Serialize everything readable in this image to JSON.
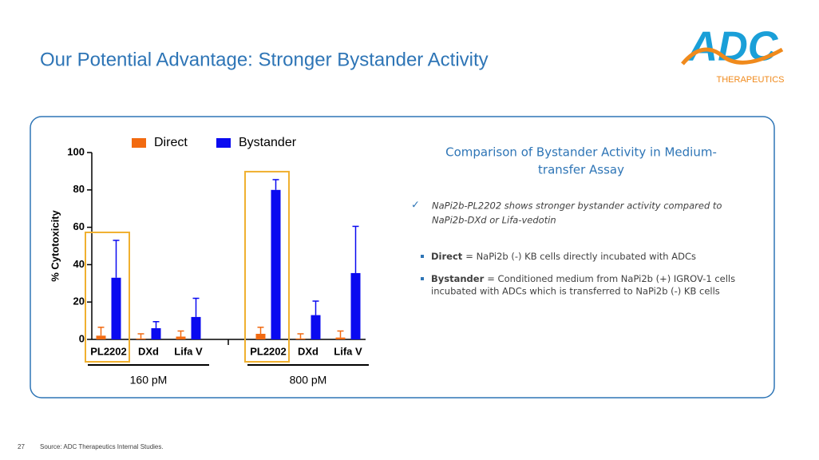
{
  "slide": {
    "title": "Our Potential Advantage: Stronger Bystander Activity",
    "logo": {
      "mark": "ADC",
      "subtitle": "THERAPEUTICS"
    },
    "panel_title": [
      "Comparison of Bystander Activity in Medium-",
      "transfer Assay"
    ],
    "check_note": [
      "NaPi2b-PL2202 shows stronger bystander activity compared to",
      "NaPi2b-DXd or Lifa-vedotin"
    ],
    "bullets": [
      {
        "term": "Direct",
        "text": [
          "= NaPi2b (-) KB cells directly incubated with ADCs"
        ]
      },
      {
        "term": "Bystander",
        "text": [
          "= Conditioned medium from NaPi2b (+) IGROV-1 cells",
          "incubated with ADCs which is transferred to NaPi2b (-) KB cells"
        ]
      }
    ],
    "page_number": "27",
    "source": "Source: ADC Therapeutics Internal Studies."
  },
  "chart_data": {
    "type": "bar",
    "y_label": "% Cytotoxicity",
    "categories": [
      "PL2202",
      "DXd",
      "Lifa V",
      "PL2202",
      "DXd",
      "Lifa V"
    ],
    "groups": [
      {
        "label": "160 pM",
        "size": 3
      },
      {
        "label": "800 pM",
        "size": 3
      }
    ],
    "series": [
      {
        "name": "Direct",
        "color": "#f26a10",
        "values": [
          2,
          0.5,
          1.5,
          3,
          0.5,
          1
        ],
        "errors": [
          4.5,
          2.5,
          3,
          3.5,
          2.5,
          3.5
        ]
      },
      {
        "name": "Bystander",
        "color": "#0a0af0",
        "values": [
          33,
          6,
          12,
          80,
          13,
          35.5
        ],
        "errors": [
          20,
          3.5,
          10,
          5.5,
          7.5,
          25
        ]
      }
    ],
    "highlights": [
      0,
      3
    ],
    "highlight_color": "#f0b030",
    "ylim": [
      0,
      100
    ],
    "yticks": [
      0,
      20,
      40,
      60,
      80,
      100
    ]
  }
}
